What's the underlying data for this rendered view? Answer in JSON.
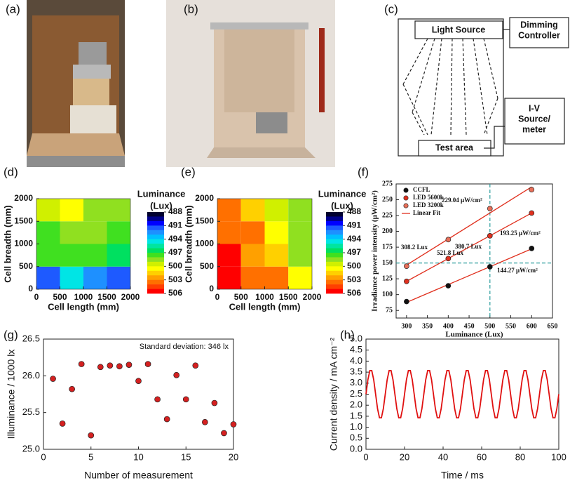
{
  "panels": {
    "a": {
      "label": "(a)"
    },
    "b": {
      "label": "(b)"
    },
    "c": {
      "label": "(c)",
      "nodes": [
        {
          "lines": [
            "Light Source"
          ]
        },
        {
          "lines": [
            "Dimming",
            "Controller"
          ]
        },
        {
          "lines": [
            "I-V",
            "Source/",
            "meter"
          ]
        },
        {
          "lines": [
            "Test area"
          ]
        }
      ]
    }
  },
  "chart_data": [
    {
      "type": "heatmap",
      "panel": "(d)",
      "xlabel": "Cell length (mm)",
      "ylabel": "Cell breadth (mm)",
      "xlim": [
        0,
        2000
      ],
      "ylim": [
        0,
        2000
      ],
      "xticks": [
        0,
        500,
        1000,
        1500,
        2000
      ],
      "yticks": [
        0,
        500,
        1000,
        1500,
        2000
      ],
      "xbins": [
        0,
        500,
        1000,
        1500,
        2000
      ],
      "ybins": [
        0,
        500,
        1000,
        1500,
        2000
      ],
      "z": [
        [
          491,
          494,
          492,
          491
        ],
        [
          497,
          497,
          497,
          496
        ],
        [
          497,
          498,
          498,
          497.5
        ],
        [
          499,
          500,
          498.5,
          498
        ]
      ],
      "colorbar_title": [
        "Luminance",
        "(Lux)"
      ],
      "clim": [
        488,
        506
      ],
      "cticks": [
        488,
        491,
        494,
        497,
        500,
        503,
        506
      ],
      "colors": [
        "#000030",
        "#00008b",
        "#0000ff",
        "#1e5aff",
        "#1e90ff",
        "#00bfff",
        "#00e5e5",
        "#00e5a0",
        "#00e060",
        "#40e020",
        "#90e020",
        "#d0f000",
        "#ffff00",
        "#ffd000",
        "#ffa000",
        "#ff7000",
        "#ff4000",
        "#ff0000"
      ]
    },
    {
      "type": "heatmap",
      "panel": "(e)",
      "xlabel": "Cell length (mm)",
      "ylabel": "Cell breadth (mm)",
      "xlim": [
        0,
        2000
      ],
      "ylim": [
        0,
        2000
      ],
      "xticks": [
        0,
        500,
        1000,
        1500,
        2000
      ],
      "yticks": [
        0,
        500,
        1000,
        1500,
        2000
      ],
      "xbins": [
        0,
        500,
        1000,
        1500,
        2000
      ],
      "ybins": [
        0,
        500,
        1000,
        1500,
        2000
      ],
      "z": [
        [
          505.5,
          503.5,
          503,
          500
        ],
        [
          505,
          502,
          501,
          498.5
        ],
        [
          503.5,
          503,
          500.5,
          498
        ],
        [
          503,
          501,
          499.5,
          498
        ]
      ],
      "colorbar_title": [
        "Luminance",
        "(Lux)"
      ],
      "clim": [
        488,
        506
      ],
      "cticks": [
        488,
        491,
        494,
        497,
        500,
        503,
        506
      ],
      "colors": [
        "#000030",
        "#00008b",
        "#0000ff",
        "#1e5aff",
        "#1e90ff",
        "#00bfff",
        "#00e5e5",
        "#00e5a0",
        "#00e060",
        "#40e020",
        "#90e020",
        "#d0f000",
        "#ffff00",
        "#ffd000",
        "#ffa000",
        "#ff7000",
        "#ff4000",
        "#ff0000"
      ]
    },
    {
      "type": "scatter",
      "panel": "(f)",
      "xlabel": "Luminance (Lux)",
      "ylabel": "Irradiance power intensity (μW/cm²)",
      "xlim": [
        275,
        650
      ],
      "ylim": [
        63,
        275
      ],
      "xticks": [
        300,
        350,
        400,
        450,
        500,
        550,
        600,
        650
      ],
      "yticks": [
        75,
        100,
        125,
        150,
        175,
        200,
        225,
        250,
        275
      ],
      "x": [
        300,
        400,
        500,
        600
      ],
      "series": [
        {
          "name": "CCFL",
          "color": "#111111",
          "values": [
            89,
            114,
            144,
            173
          ]
        },
        {
          "name": "LED 5600k",
          "color": "#e0301e",
          "values": [
            121,
            157,
            193,
            229
          ]
        },
        {
          "name": "LED 3200k",
          "color": "#e8705a",
          "values": [
            145,
            187,
            236,
            266
          ]
        }
      ],
      "fit_name": "Linear Fit",
      "fit_color": "#e0301e",
      "vline": 500,
      "hline": 150,
      "ref_color": "#2a9d9d",
      "annotations": [
        "229.04 μW/cm²",
        "308.2 Lux",
        "380.7 Lux",
        "521.8 Lux",
        "193.25 μW/cm²",
        "144.27 μW/cm²"
      ]
    },
    {
      "type": "scatter",
      "panel": "(g)",
      "xlabel": "Number  of measurement",
      "ylabel": "Illuminance  / 1000 lx",
      "xlim": [
        0,
        20
      ],
      "ylim": [
        25,
        26.5
      ],
      "xticks": [
        0,
        5,
        10,
        15,
        20
      ],
      "yticks": [
        {
          "value": 25,
          "label": "25.0"
        },
        25.5,
        {
          "value": 26,
          "label": "26.0"
        },
        26.5
      ],
      "x": [
        1,
        2,
        3,
        4,
        5,
        6,
        7,
        8,
        9,
        10,
        11,
        12,
        13,
        14,
        15,
        16,
        17,
        18,
        19,
        20
      ],
      "series": [
        {
          "color": "#d42020",
          "values": [
            25.96,
            25.35,
            25.82,
            26.16,
            25.19,
            26.12,
            26.14,
            26.13,
            26.15,
            25.93,
            26.16,
            25.68,
            25.41,
            26.01,
            25.68,
            26.14,
            25.37,
            25.63,
            25.22,
            25.34
          ]
        }
      ],
      "annotations": [
        "Standard deviation: 346 lx"
      ]
    },
    {
      "type": "line",
      "panel": "(h)",
      "xlabel": "Time / ms",
      "ylabel": "Current density / mA cm⁻²",
      "xlim": [
        0,
        100
      ],
      "ylim": [
        0,
        5
      ],
      "xticks": [
        0,
        20,
        40,
        60,
        80,
        100
      ],
      "yticks": [
        {
          "value": 0,
          "label": "0.0"
        },
        0.5,
        {
          "value": 1,
          "label": "1.0"
        },
        1.5,
        {
          "value": 2,
          "label": "2.0"
        },
        2.5,
        {
          "value": 3,
          "label": "3.0"
        },
        3.5,
        {
          "value": 4,
          "label": "4.0"
        },
        4.5,
        {
          "value": 5,
          "label": "5.0"
        }
      ],
      "color": "#e01010",
      "x": [
        0,
        1,
        2,
        3,
        4,
        5,
        6,
        7,
        8,
        9,
        10,
        11,
        12,
        13,
        14,
        15,
        16,
        17,
        18,
        19,
        20,
        21,
        22,
        23,
        24,
        25,
        26,
        27,
        28,
        29,
        30,
        31,
        32,
        33,
        34,
        35,
        36,
        37,
        38,
        39,
        40,
        41,
        42,
        43,
        44,
        45,
        46,
        47,
        48,
        49,
        50,
        51,
        52,
        53,
        54,
        55,
        56,
        57,
        58,
        59,
        60,
        61,
        62,
        63,
        64,
        65,
        66,
        67,
        68,
        69,
        70,
        71,
        72,
        73,
        74,
        75,
        76,
        77,
        78,
        79,
        80,
        81,
        82,
        83,
        84,
        85,
        86,
        87,
        88,
        89,
        90,
        91,
        92,
        93,
        94,
        95,
        96,
        97,
        98,
        99,
        100
      ],
      "values": [
        2.5,
        3.16,
        3.57,
        3.57,
        3.16,
        2.5,
        1.84,
        1.43,
        1.43,
        1.84,
        2.5,
        3.16,
        3.57,
        3.57,
        3.16,
        2.5,
        1.84,
        1.43,
        1.43,
        1.84,
        2.5,
        3.16,
        3.57,
        3.57,
        3.16,
        2.5,
        1.84,
        1.43,
        1.43,
        1.84,
        2.5,
        3.16,
        3.57,
        3.57,
        3.16,
        2.5,
        1.84,
        1.43,
        1.43,
        1.84,
        2.5,
        3.16,
        3.57,
        3.57,
        3.16,
        2.5,
        1.84,
        1.43,
        1.43,
        1.84,
        2.5,
        3.16,
        3.57,
        3.57,
        3.16,
        2.5,
        1.84,
        1.43,
        1.43,
        1.84,
        2.5,
        3.16,
        3.57,
        3.57,
        3.16,
        2.5,
        1.84,
        1.43,
        1.43,
        1.84,
        2.5,
        3.16,
        3.57,
        3.57,
        3.16,
        2.5,
        1.84,
        1.43,
        1.43,
        1.84,
        2.5,
        3.16,
        3.57,
        3.57,
        3.16,
        2.5,
        1.84,
        1.43,
        1.43,
        1.84,
        2.5,
        3.16,
        3.57,
        3.57,
        3.16,
        2.5,
        1.84,
        1.43,
        1.43,
        1.84,
        2.5
      ]
    }
  ]
}
